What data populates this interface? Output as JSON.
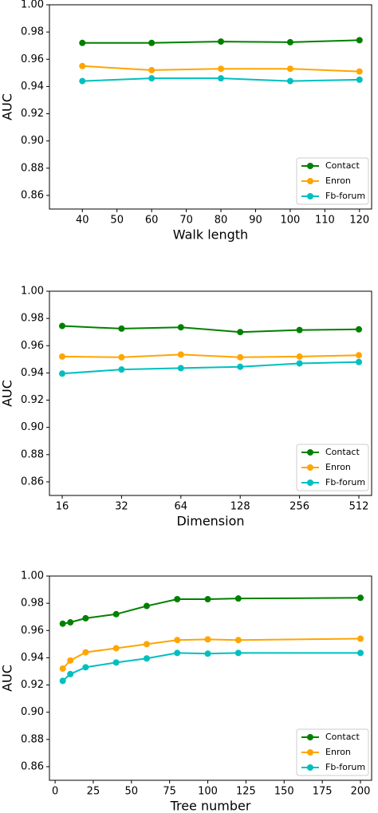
{
  "chart_data": [
    {
      "type": "line",
      "xlabel": "Walk length",
      "ylabel": "AUC",
      "x": [
        40,
        60,
        80,
        100,
        120
      ],
      "xlim": [
        30.5,
        123.5
      ],
      "xticks": [
        40,
        50,
        60,
        70,
        80,
        90,
        100,
        110,
        120
      ],
      "ylim": [
        0.85,
        1.0
      ],
      "yticks": [
        0.86,
        0.88,
        {
          "value": 0.9,
          "label": "0.90"
        },
        0.92,
        0.94,
        0.96,
        0.98,
        {
          "value": 1,
          "label": "1.00"
        }
      ],
      "legend": "lower right",
      "grid": false,
      "series": [
        {
          "name": "Contact",
          "color": "#008000",
          "values": [
            0.972,
            0.972,
            0.973,
            0.9725,
            0.974
          ]
        },
        {
          "name": "Enron",
          "color": "#ffa500",
          "values": [
            0.955,
            0.952,
            0.953,
            0.953,
            0.951
          ]
        },
        {
          "name": "Fb-forum",
          "color": "#00bfbf",
          "values": [
            0.944,
            0.946,
            0.946,
            0.944,
            0.945
          ]
        }
      ]
    },
    {
      "type": "line",
      "xlabel": "Dimension",
      "ylabel": "AUC",
      "categories": [
        "16",
        "32",
        "64",
        "128",
        "256",
        "512"
      ],
      "ylim": [
        0.85,
        1.0
      ],
      "yticks": [
        0.86,
        0.88,
        {
          "value": 0.9,
          "label": "0.90"
        },
        0.92,
        0.94,
        0.96,
        0.98,
        {
          "value": 1,
          "label": "1.00"
        }
      ],
      "legend": "lower right",
      "grid": false,
      "series": [
        {
          "name": "Contact",
          "color": "#008000",
          "values": [
            0.9745,
            0.9725,
            0.9735,
            0.97,
            0.9715,
            0.972
          ]
        },
        {
          "name": "Enron",
          "color": "#ffa500",
          "values": [
            0.952,
            0.9515,
            0.9535,
            0.9515,
            0.952,
            0.953
          ]
        },
        {
          "name": "Fb-forum",
          "color": "#00bfbf",
          "values": [
            0.9395,
            0.9425,
            0.9435,
            0.9445,
            0.947,
            0.948
          ]
        }
      ]
    },
    {
      "type": "line",
      "xlabel": "Tree number",
      "ylabel": "AUC",
      "x": [
        5,
        10,
        20,
        40,
        60,
        80,
        100,
        120,
        200
      ],
      "xlim": [
        -3.7,
        207.3
      ],
      "xticks": [
        0,
        25,
        50,
        75,
        100,
        125,
        150,
        175,
        200
      ],
      "ylim": [
        0.85,
        1.0
      ],
      "yticks": [
        0.86,
        0.88,
        {
          "value": 0.9,
          "label": "0.90"
        },
        0.92,
        0.94,
        0.96,
        0.98,
        {
          "value": 1,
          "label": "1.00"
        }
      ],
      "legend": "lower right",
      "grid": false,
      "series": [
        {
          "name": "Contact",
          "color": "#008000",
          "values": [
            0.965,
            0.966,
            0.969,
            0.972,
            0.978,
            0.983,
            0.983,
            0.9835,
            0.984
          ]
        },
        {
          "name": "Enron",
          "color": "#ffa500",
          "values": [
            0.932,
            0.938,
            0.944,
            0.947,
            0.95,
            0.953,
            0.9535,
            0.953,
            0.954
          ]
        },
        {
          "name": "Fb-forum",
          "color": "#00bfbf",
          "values": [
            0.923,
            0.928,
            0.933,
            0.9365,
            0.9395,
            0.9435,
            0.943,
            0.9435,
            0.9435
          ]
        }
      ]
    }
  ]
}
